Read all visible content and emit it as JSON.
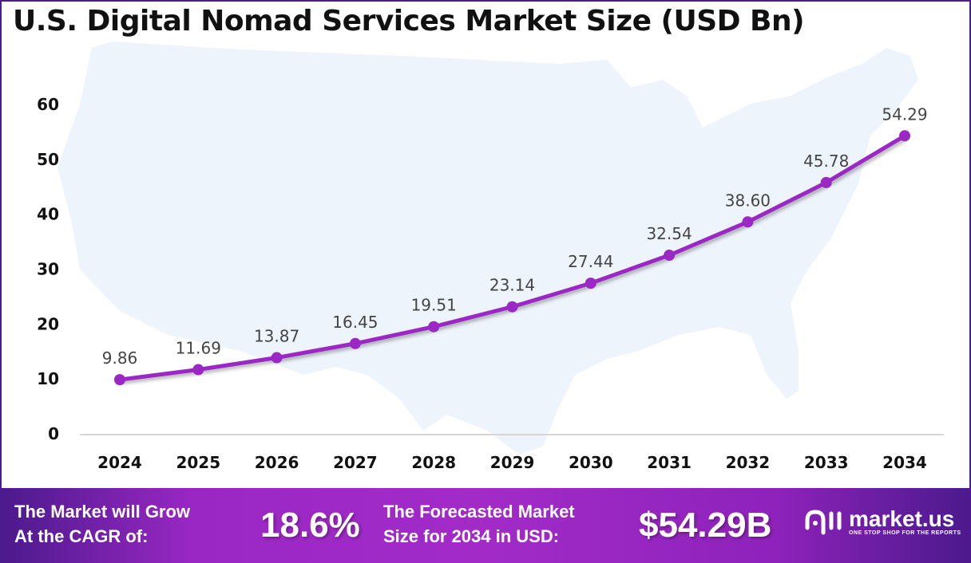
{
  "chart_data": {
    "type": "line",
    "title": "U.S. Digital Nomad Services Market Size (USD Bn)",
    "categories": [
      "2024",
      "2025",
      "2026",
      "2027",
      "2028",
      "2029",
      "2030",
      "2031",
      "2032",
      "2033",
      "2034"
    ],
    "values": [
      9.86,
      11.69,
      13.87,
      16.45,
      19.51,
      23.14,
      27.44,
      32.54,
      38.6,
      45.78,
      54.29
    ],
    "data_labels": [
      "9.86",
      "11.69",
      "13.87",
      "16.45",
      "19.51",
      "23.14",
      "27.44",
      "32.54",
      "38.60",
      "45.78",
      "54.29"
    ],
    "yticks": [
      "0",
      "10",
      "20",
      "30",
      "40",
      "50",
      "60"
    ],
    "ylim": [
      0,
      60
    ],
    "grid": false,
    "line_color": "#9b27c4",
    "background": "US map silhouette"
  },
  "footer": {
    "cagr_label_1": "The Market will Grow",
    "cagr_label_2": "At the CAGR of:",
    "cagr_value": "18.6%",
    "forecast_label_1": "The Forecasted Market",
    "forecast_label_2": "Size for 2034 in USD:",
    "forecast_value": "$54.29B",
    "logo_name": "market.us",
    "logo_tagline": "ONE STOP SHOP FOR THE REPORTS"
  }
}
